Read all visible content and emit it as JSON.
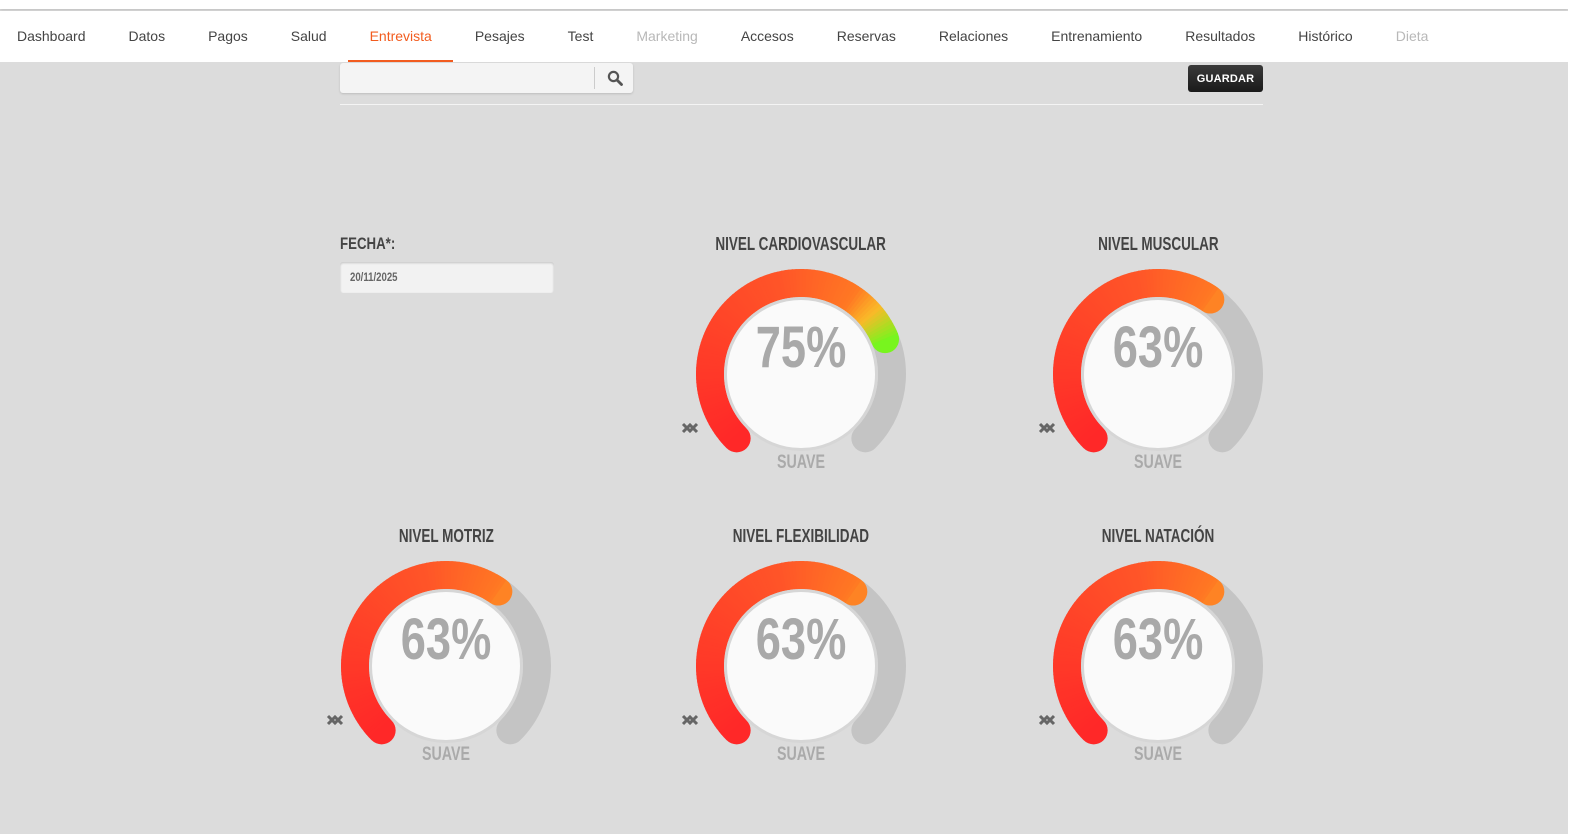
{
  "nav": {
    "tabs": [
      {
        "label": "Dashboard",
        "state": "normal"
      },
      {
        "label": "Datos",
        "state": "normal"
      },
      {
        "label": "Pagos",
        "state": "normal"
      },
      {
        "label": "Salud",
        "state": "normal"
      },
      {
        "label": "Entrevista",
        "state": "active"
      },
      {
        "label": "Pesajes",
        "state": "normal"
      },
      {
        "label": "Test",
        "state": "normal"
      },
      {
        "label": "Marketing",
        "state": "disabled"
      },
      {
        "label": "Accesos",
        "state": "normal"
      },
      {
        "label": "Reservas",
        "state": "normal"
      },
      {
        "label": "Relaciones",
        "state": "normal"
      },
      {
        "label": "Entrenamiento",
        "state": "normal"
      },
      {
        "label": "Resultados",
        "state": "normal"
      },
      {
        "label": "Histórico",
        "state": "normal"
      },
      {
        "label": "Dieta",
        "state": "disabled"
      }
    ]
  },
  "search": {
    "value": "",
    "icon": "search-icon"
  },
  "toolbar": {
    "save_label": "GUARDAR"
  },
  "form": {
    "date_label": "FECHA*:",
    "date_value": "20/11/2025"
  },
  "colors": {
    "accent": "#f25c1f",
    "track": "#c4c4c4"
  },
  "gauges": [
    {
      "title": "NIVEL CARDIOVASCULAR",
      "value": 75,
      "display": "75%",
      "mode": "SUAVE"
    },
    {
      "title": "NIVEL MUSCULAR",
      "value": 63,
      "display": "63%",
      "mode": "SUAVE"
    },
    {
      "title": "NIVEL MOTRIZ",
      "value": 63,
      "display": "63%",
      "mode": "SUAVE"
    },
    {
      "title": "NIVEL FLEXIBILIDAD",
      "value": 63,
      "display": "63%",
      "mode": "SUAVE"
    },
    {
      "title": "NIVEL NATACIÓN",
      "value": 63,
      "display": "63%",
      "mode": "SUAVE"
    }
  ]
}
